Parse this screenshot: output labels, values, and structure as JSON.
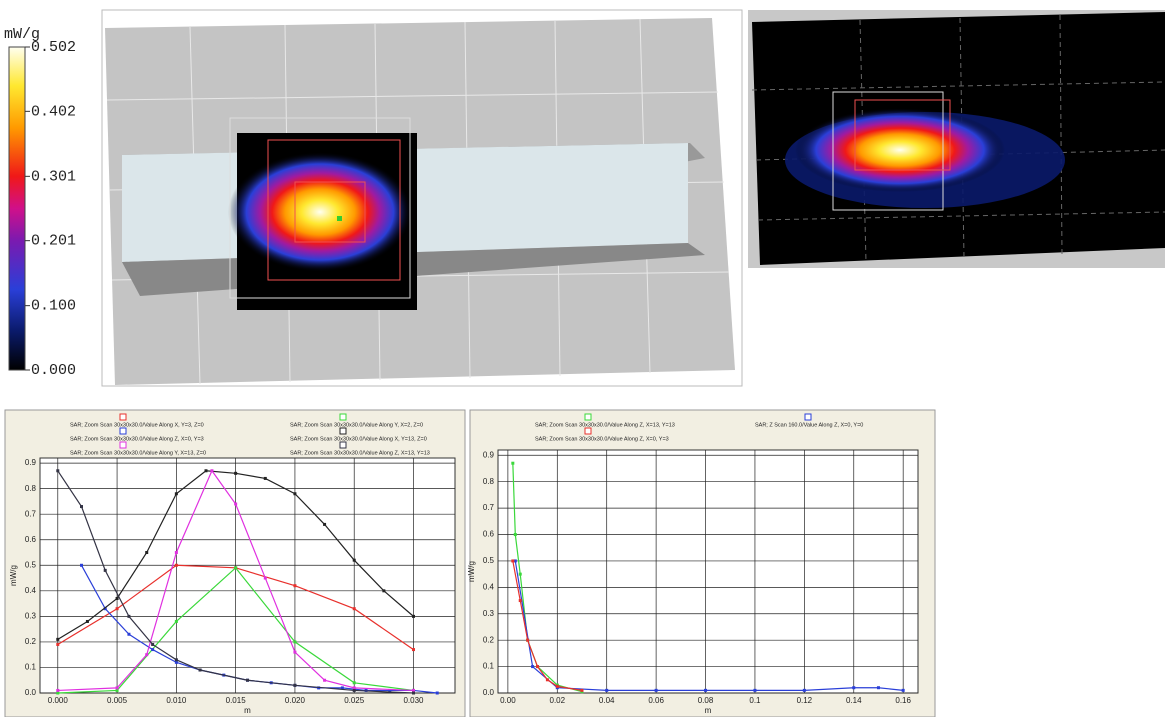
{
  "colorbar": {
    "label": "mW/g",
    "ticks": [
      0.502,
      0.402,
      0.301,
      0.201,
      {
        "value": 0.1,
        "label": "0.100"
      },
      {
        "value": 0,
        "label": "0.000"
      }
    ]
  },
  "chart_data": [
    {
      "type": "line",
      "xlabel": "m",
      "ylabel": "mW/g",
      "grid": true,
      "xlim": [
        -0.0015,
        0.0335
      ],
      "ylim": [
        0,
        0.92
      ],
      "xticks": [
        {
          "value": 0,
          "label": "0.000"
        },
        {
          "value": 0.005,
          "label": "0.005"
        },
        {
          "value": 0.01,
          "label": "0.010"
        },
        {
          "value": 0.015,
          "label": "0.015"
        },
        {
          "value": 0.02,
          "label": "0.020"
        },
        {
          "value": 0.025,
          "label": "0.025"
        },
        {
          "value": 0.03,
          "label": "0.030"
        }
      ],
      "yticks": [
        {
          "value": 0,
          "label": "0.0"
        },
        0.1,
        0.2,
        0.3,
        0.4,
        0.5,
        0.6,
        0.7,
        0.8,
        0.9
      ],
      "series": [
        {
          "name": "SAR; Zoom Scan 30x30x30.0/Value Along X, Y=3, Z=0",
          "color": "#e8302c",
          "x": [
            0,
            0.005,
            0.01,
            0.015,
            0.02,
            0.025,
            0.03
          ],
          "values": [
            0.19,
            0.33,
            0.5,
            0.49,
            0.42,
            0.33,
            0.17
          ]
        },
        {
          "name": "SAR; Zoom Scan 30x30x30.0/Value Along Y, X=2, Z=0",
          "color": "#3ad83a",
          "x": [
            0,
            0.005,
            0.01,
            0.015,
            0.02,
            0.025,
            0.03
          ],
          "values": [
            0,
            0.01,
            0.28,
            0.49,
            0.2,
            0.04,
            0.01
          ]
        },
        {
          "name": "SAR; Zoom Scan 30x30x30.0/Value Along Z, X=0, Y=3",
          "color": "#2a3fd8",
          "x": [
            0.002,
            0.004,
            0.006,
            0.008,
            0.01,
            0.012,
            0.014,
            0.016,
            0.018,
            0.02,
            0.022,
            0.024,
            0.026,
            0.028,
            0.03,
            0.032
          ],
          "values": [
            0.5,
            0.33,
            0.23,
            0.17,
            0.12,
            0.09,
            0.07,
            0.05,
            0.04,
            0.03,
            0.02,
            0.02,
            0.01,
            0.01,
            0.01,
            0
          ]
        },
        {
          "name": "SAR; Zoom Scan 30x30x30.0/Value Along X, Y=13, Z=0",
          "color": "#222222",
          "x": [
            0,
            0.0025,
            0.005,
            0.0075,
            0.01,
            0.0125,
            0.015,
            0.0175,
            0.02,
            0.0225,
            0.025,
            0.0275,
            0.03
          ],
          "values": [
            0.21,
            0.28,
            0.37,
            0.55,
            0.78,
            0.87,
            0.86,
            0.84,
            0.78,
            0.66,
            0.52,
            0.4,
            0.3
          ]
        },
        {
          "name": "SAR; Zoom Scan 30x30x30.0/Value Along Y, X=13, Z=0",
          "color": "#e030e0",
          "x": [
            0,
            0.005,
            0.0075,
            0.01,
            0.013,
            0.015,
            0.0175,
            0.02,
            0.0225,
            0.025,
            0.03
          ],
          "values": [
            0.01,
            0.02,
            0.15,
            0.55,
            0.87,
            0.74,
            0.45,
            0.16,
            0.05,
            0.02,
            0.01
          ]
        },
        {
          "name": "SAR; Zoom Scan 30x30x30.0/Value Along Z, X=13, Y=13",
          "color": "#333344",
          "x": [
            0,
            0.002,
            0.004,
            0.006,
            0.008,
            0.01,
            0.012,
            0.016,
            0.02,
            0.025,
            0.03
          ],
          "values": [
            0.87,
            0.73,
            0.48,
            0.3,
            0.19,
            0.13,
            0.09,
            0.05,
            0.03,
            0.01,
            0
          ]
        }
      ]
    },
    {
      "type": "line",
      "xlabel": "m",
      "ylabel": "mW/g",
      "grid": true,
      "xlim": [
        -0.004,
        0.166
      ],
      "ylim": [
        0,
        0.92
      ],
      "xticks": [
        {
          "value": 0,
          "label": "0.00"
        },
        {
          "value": 0.02,
          "label": "0.02"
        },
        {
          "value": 0.04,
          "label": "0.04"
        },
        {
          "value": 0.06,
          "label": "0.06"
        },
        {
          "value": 0.08,
          "label": "0.08"
        },
        0.1,
        0.12,
        0.14,
        0.16
      ],
      "yticks": [
        {
          "value": 0,
          "label": "0.0"
        },
        0.1,
        0.2,
        0.3,
        0.4,
        0.5,
        0.6,
        0.7,
        0.8,
        0.9
      ],
      "series": [
        {
          "name": "SAR; Zoom Scan 30x30x30.0/Value Along Z, X=13, Y=13",
          "color": "#3ad83a",
          "x": [
            0.002,
            0.003,
            0.005,
            0.008,
            0.012,
            0.02,
            0.03
          ],
          "values": [
            0.87,
            0.6,
            0.45,
            0.2,
            0.1,
            0.03,
            0.005
          ]
        },
        {
          "name": "SAR; Z Scan 160.0/Value Along Z, X=0, Y=0",
          "color": "#2a3fd8",
          "x": [
            0.003,
            0.01,
            0.02,
            0.04,
            0.06,
            0.08,
            0.1,
            0.12,
            0.14,
            0.15,
            0.16
          ],
          "values": [
            0.5,
            0.1,
            0.02,
            0.01,
            0.01,
            0.01,
            0.01,
            0.01,
            0.02,
            0.02,
            0.01
          ]
        },
        {
          "name": "SAR; Zoom Scan 30x30x30.0/Value Along Z, X=0, Y=3",
          "color": "#e8302c",
          "x": [
            0.002,
            0.005,
            0.008,
            0.012,
            0.016,
            0.02,
            0.03
          ],
          "values": [
            0.5,
            0.35,
            0.2,
            0.1,
            0.05,
            0.025,
            0.01
          ]
        }
      ]
    }
  ]
}
